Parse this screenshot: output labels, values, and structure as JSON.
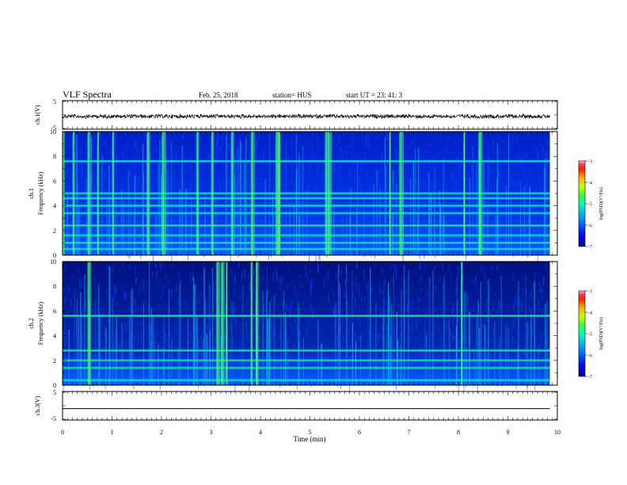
{
  "header": {
    "title": "VLF Spectra",
    "date": "Feb. 25, 2018",
    "station": "station= HUS",
    "start": "start  UT =   23: 41: 3"
  },
  "colors": {
    "axis": "#000000",
    "spec_low": "#00008f",
    "spec_mid": "#00b4ff",
    "spec_high": "#3cff3c"
  },
  "chart_data": [
    {
      "type": "line",
      "panel": "ch1-waveform",
      "ylabel": "ch.1(V)",
      "ylim": [
        -5,
        5
      ],
      "yticks": [
        "5",
        "-5"
      ],
      "description_level": -0.5
    },
    {
      "type": "heatmap",
      "panel": "ch1-spectrogram",
      "ylabel": "ch.1\nFrequency (kHz)",
      "ylim": [
        0,
        10
      ],
      "yticks": [
        "0",
        "2",
        "4",
        "6",
        "8",
        "10"
      ],
      "colorbar": {
        "label": "log(PSD)(V²/Hz)",
        "ticks": [
          "-3",
          "-4",
          "-5",
          "-6",
          "-7"
        ],
        "range": [
          -7,
          -3
        ]
      },
      "bright_bands_khz": [
        0.5,
        1.0,
        1.6,
        2.4,
        3.4,
        4.0,
        4.6,
        5.0,
        7.6
      ],
      "bright_columns_min": [
        0.0,
        0.2,
        0.5,
        0.7,
        1.0,
        1.7,
        2.0,
        2.7,
        3.0,
        3.4,
        3.8,
        4.3,
        4.35,
        5.3,
        5.35,
        6.6,
        6.8,
        8.1,
        8.4
      ]
    },
    {
      "type": "heatmap",
      "panel": "ch2-spectrogram",
      "ylabel": "ch.2\nFrequency (kHz)",
      "ylim": [
        0,
        10
      ],
      "yticks": [
        "0",
        "2",
        "4",
        "6",
        "8",
        "10"
      ],
      "colorbar": {
        "label": "log(PSD)(V²/Hz)",
        "ticks": [
          "-3",
          "-4",
          "-5",
          "-6",
          "-7"
        ],
        "range": [
          -7,
          -3
        ]
      },
      "bright_bands_khz": [
        0.4,
        1.4,
        2.0,
        2.8,
        5.6
      ],
      "bright_columns_min": [
        0.5,
        3.1,
        3.2,
        3.3,
        3.8,
        3.9,
        8.05
      ]
    },
    {
      "type": "line",
      "panel": "ch3-waveform",
      "ylabel": "ch.3(V)",
      "ylim": [
        -5,
        5
      ],
      "yticks": [
        "5",
        "-5"
      ],
      "description_level": -1.0
    }
  ],
  "xaxis": {
    "label": "Time (min)",
    "ticks": [
      "0",
      "1",
      "2",
      "3",
      "4",
      "5",
      "6",
      "7",
      "8",
      "9",
      "10"
    ],
    "xlim": [
      0,
      10
    ],
    "data_end_min": 9.85
  }
}
